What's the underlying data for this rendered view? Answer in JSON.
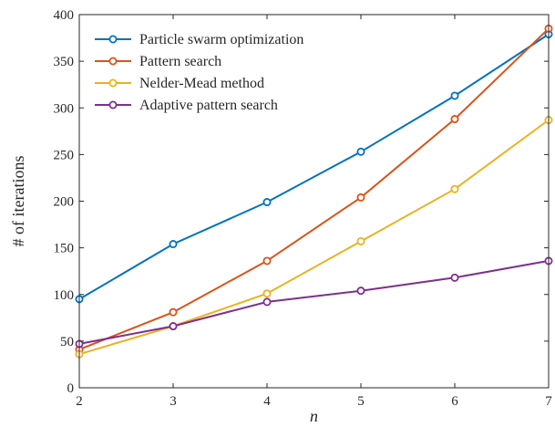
{
  "chart_data": {
    "type": "line",
    "xlabel": "n",
    "ylabel": "# of iterations",
    "xlim": [
      2,
      7
    ],
    "ylim": [
      0,
      400
    ],
    "xticks": [
      2,
      3,
      4,
      5,
      6,
      7
    ],
    "yticks": [
      0,
      50,
      100,
      150,
      200,
      250,
      300,
      350,
      400
    ],
    "grid": false,
    "legend_position": "top-left",
    "x": [
      2,
      3,
      4,
      5,
      6,
      7
    ],
    "series": [
      {
        "name": "Particle swarm optimization",
        "color": "#0072BD",
        "values": [
          95,
          154,
          199,
          253,
          313,
          379
        ]
      },
      {
        "name": "Pattern search",
        "color": "#D95319",
        "values": [
          41,
          81,
          136,
          204,
          288,
          385
        ]
      },
      {
        "name": "Nelder-Mead method",
        "color": "#EDB120",
        "values": [
          36,
          66,
          101,
          157,
          213,
          287
        ]
      },
      {
        "name": "Adaptive pattern search",
        "color": "#7E2F8E",
        "values": [
          47,
          66,
          92,
          104,
          118,
          136
        ]
      }
    ]
  }
}
